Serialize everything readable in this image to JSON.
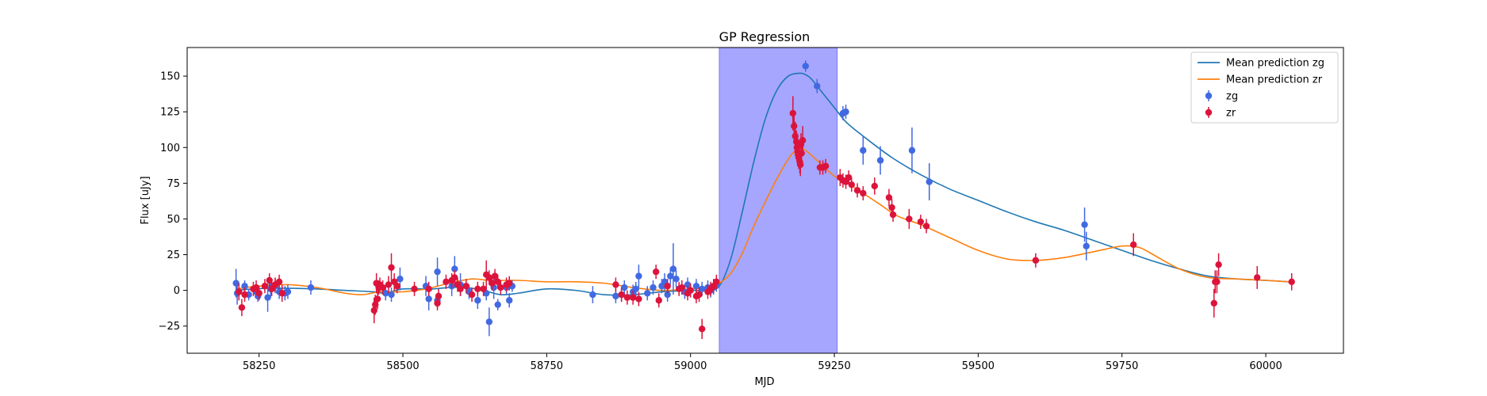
{
  "chart_data": {
    "type": "scatter",
    "title": "GP Regression",
    "xlabel": "MJD",
    "ylabel": "Flux [uJy]",
    "xlim": [
      58125,
      60135
    ],
    "ylim": [
      -44,
      170
    ],
    "xticks": [
      58250,
      58500,
      58750,
      59000,
      59250,
      59500,
      59750,
      60000
    ],
    "yticks": [
      -25,
      0,
      25,
      50,
      75,
      100,
      125,
      150
    ],
    "grid": false,
    "legend_position": "top-right",
    "highlight_region": {
      "x0": 59050,
      "x1": 59255,
      "color": "#a6a6ff"
    },
    "lines": [
      {
        "name": "Mean prediction zg",
        "color": "#1f77b4",
        "x": [
          58210,
          58240,
          58270,
          58300,
          58350,
          58400,
          58450,
          58470,
          58500,
          58550,
          58580,
          58610,
          58640,
          58670,
          58700,
          58750,
          58800,
          58850,
          58900,
          58950,
          59000,
          59030,
          59050,
          59070,
          59090,
          59110,
          59130,
          59150,
          59170,
          59190,
          59200,
          59210,
          59230,
          59250,
          59270,
          59300,
          59350,
          59400,
          59450,
          59500,
          59550,
          59600,
          59650,
          59700,
          59750,
          59800,
          59850,
          59900,
          59950,
          60000,
          60040
        ],
        "y": [
          0,
          1,
          1.5,
          1.5,
          1,
          0,
          -1,
          -2,
          1,
          1,
          2,
          2,
          0,
          -3,
          -2,
          1,
          0,
          -3,
          -3,
          -1,
          0,
          0,
          3,
          22,
          55,
          90,
          120,
          140,
          150,
          152,
          151,
          148,
          138,
          128,
          118,
          108,
          93,
          81,
          71,
          63,
          55,
          48,
          42,
          35,
          28,
          21,
          15,
          10,
          8,
          7,
          6
        ]
      },
      {
        "name": "Mean prediction zr",
        "color": "#ff7f0e",
        "x": [
          58210,
          58250,
          58300,
          58350,
          58400,
          58430,
          58460,
          58500,
          58540,
          58580,
          58620,
          58650,
          58700,
          58750,
          58800,
          58850,
          58900,
          58950,
          59000,
          59030,
          59050,
          59070,
          59090,
          59110,
          59130,
          59150,
          59170,
          59180,
          59190,
          59200,
          59220,
          59250,
          59270,
          59300,
          59330,
          59360,
          59400,
          59450,
          59500,
          59550,
          59600,
          59650,
          59700,
          59750,
          59780,
          59800,
          59850,
          59900,
          59950,
          60000,
          60040
        ],
        "y": [
          1,
          3,
          4,
          2,
          -2,
          -3,
          -1,
          -1,
          1,
          5,
          8,
          7,
          7,
          6,
          6,
          5,
          2,
          0,
          1,
          2,
          5,
          12,
          26,
          45,
          62,
          78,
          92,
          97,
          99,
          98,
          91,
          80,
          76,
          68,
          60,
          52,
          46,
          37,
          28,
          22,
          21,
          23,
          27,
          31,
          30,
          26,
          15,
          9,
          8,
          7,
          6
        ]
      }
    ],
    "series": [
      {
        "name": "zg",
        "color": "#4169e1",
        "points": [
          [
            58210,
            5,
            10
          ],
          [
            58212,
            -2,
            8
          ],
          [
            58225,
            3,
            4
          ],
          [
            58232,
            -3,
            4
          ],
          [
            58245,
            -1,
            3
          ],
          [
            58248,
            -4,
            4
          ],
          [
            58265,
            -5,
            10
          ],
          [
            58270,
            1,
            6
          ],
          [
            58278,
            3,
            5
          ],
          [
            58285,
            -1,
            5
          ],
          [
            58295,
            -2,
            5
          ],
          [
            58300,
            -1,
            5
          ],
          [
            58340,
            2,
            5
          ],
          [
            58470,
            -2,
            5
          ],
          [
            58480,
            -3,
            5
          ],
          [
            58495,
            8,
            8
          ],
          [
            58540,
            3,
            7
          ],
          [
            58545,
            -6,
            8
          ],
          [
            58560,
            13,
            10
          ],
          [
            58560,
            -7,
            5
          ],
          [
            58585,
            3,
            7
          ],
          [
            58590,
            15,
            9
          ],
          [
            58600,
            4,
            8
          ],
          [
            58615,
            -1,
            5
          ],
          [
            58630,
            -7,
            6
          ],
          [
            58645,
            -2,
            5
          ],
          [
            58650,
            -22,
            10
          ],
          [
            58658,
            2,
            8
          ],
          [
            58665,
            -10,
            4
          ],
          [
            58680,
            2,
            5
          ],
          [
            58685,
            -7,
            5
          ],
          [
            58690,
            3,
            4
          ],
          [
            58830,
            -3,
            6
          ],
          [
            58870,
            -4,
            5
          ],
          [
            58880,
            -3,
            5
          ],
          [
            58885,
            2,
            5
          ],
          [
            58900,
            -1,
            5
          ],
          [
            58905,
            1,
            5
          ],
          [
            58910,
            10,
            8
          ],
          [
            58925,
            -2,
            5
          ],
          [
            58935,
            2,
            5
          ],
          [
            58950,
            3,
            5
          ],
          [
            58955,
            6,
            6
          ],
          [
            58960,
            -3,
            5
          ],
          [
            58965,
            10,
            6
          ],
          [
            58970,
            15,
            18
          ],
          [
            58975,
            8,
            6
          ],
          [
            58990,
            -1,
            5
          ],
          [
            58995,
            4,
            5
          ],
          [
            59010,
            3,
            5
          ],
          [
            59020,
            1,
            5
          ],
          [
            59030,
            2,
            5
          ],
          [
            59035,
            0,
            5
          ],
          [
            59040,
            2,
            5
          ],
          [
            59045,
            4,
            5
          ],
          [
            59200,
            157,
            4
          ],
          [
            59220,
            143,
            5
          ],
          [
            59265,
            124,
            5
          ],
          [
            59270,
            125,
            5
          ],
          [
            59300,
            98,
            10
          ],
          [
            59330,
            91,
            10
          ],
          [
            59385,
            98,
            16
          ],
          [
            59415,
            76,
            13
          ],
          [
            59685,
            46,
            12
          ],
          [
            59688,
            31,
            10
          ]
        ]
      },
      {
        "name": "zr",
        "color": "#dc143c",
        "points": [
          [
            58215,
            -1,
            6
          ],
          [
            58220,
            -12,
            6
          ],
          [
            58225,
            -3,
            5
          ],
          [
            58240,
            1,
            5
          ],
          [
            58245,
            2,
            5
          ],
          [
            58250,
            -2,
            5
          ],
          [
            58260,
            3,
            5
          ],
          [
            58268,
            7,
            5
          ],
          [
            58272,
            1,
            5
          ],
          [
            58278,
            4,
            5
          ],
          [
            58285,
            6,
            5
          ],
          [
            58290,
            -2,
            6
          ],
          [
            58450,
            -14,
            9
          ],
          [
            58452,
            -10,
            7
          ],
          [
            58454,
            5,
            7
          ],
          [
            58456,
            -6,
            7
          ],
          [
            58458,
            2,
            5
          ],
          [
            58460,
            4,
            5
          ],
          [
            58465,
            2,
            5
          ],
          [
            58475,
            4,
            6
          ],
          [
            58480,
            16,
            10
          ],
          [
            58485,
            6,
            6
          ],
          [
            58490,
            3,
            5
          ],
          [
            58520,
            1,
            5
          ],
          [
            58545,
            1,
            5
          ],
          [
            58560,
            -9,
            5
          ],
          [
            58562,
            -4,
            5
          ],
          [
            58575,
            6,
            5
          ],
          [
            58585,
            7,
            5
          ],
          [
            58590,
            9,
            5
          ],
          [
            58595,
            4,
            5
          ],
          [
            58600,
            1,
            5
          ],
          [
            58610,
            3,
            5
          ],
          [
            58620,
            -3,
            5
          ],
          [
            58630,
            1,
            5
          ],
          [
            58640,
            1,
            5
          ],
          [
            58645,
            11,
            10
          ],
          [
            58650,
            9,
            5
          ],
          [
            58655,
            5,
            5
          ],
          [
            58660,
            10,
            5
          ],
          [
            58665,
            6,
            5
          ],
          [
            58670,
            2,
            5
          ],
          [
            58680,
            4,
            5
          ],
          [
            58685,
            5,
            5
          ],
          [
            58870,
            4,
            5
          ],
          [
            58880,
            -3,
            5
          ],
          [
            58890,
            -5,
            5
          ],
          [
            58900,
            -5,
            5
          ],
          [
            58910,
            -6,
            5
          ],
          [
            58940,
            13,
            5
          ],
          [
            58945,
            -7,
            5
          ],
          [
            58960,
            3,
            5
          ],
          [
            58980,
            1,
            5
          ],
          [
            58985,
            2,
            5
          ],
          [
            58995,
            -2,
            5
          ],
          [
            59000,
            0,
            5
          ],
          [
            59010,
            -4,
            5
          ],
          [
            59015,
            -3,
            5
          ],
          [
            59020,
            -27,
            7
          ],
          [
            59030,
            -1,
            5
          ],
          [
            59035,
            1,
            5
          ],
          [
            59040,
            3,
            5
          ],
          [
            59045,
            6,
            5
          ],
          [
            59178,
            124,
            12
          ],
          [
            59180,
            115,
            10
          ],
          [
            59182,
            108,
            10
          ],
          [
            59184,
            104,
            8
          ],
          [
            59185,
            100,
            10
          ],
          [
            59186,
            97,
            10
          ],
          [
            59187,
            95,
            8
          ],
          [
            59188,
            93,
            8
          ],
          [
            59190,
            90,
            8
          ],
          [
            59191,
            88,
            8
          ],
          [
            59192,
            102,
            8
          ],
          [
            59193,
            96,
            8
          ],
          [
            59195,
            105,
            10
          ],
          [
            59225,
            86,
            5
          ],
          [
            59230,
            86,
            5
          ],
          [
            59235,
            87,
            5
          ],
          [
            59260,
            79,
            6
          ],
          [
            59265,
            77,
            5
          ],
          [
            59270,
            76,
            5
          ],
          [
            59275,
            79,
            5
          ],
          [
            59280,
            74,
            5
          ],
          [
            59290,
            70,
            5
          ],
          [
            59300,
            68,
            5
          ],
          [
            59320,
            73,
            6
          ],
          [
            59345,
            65,
            6
          ],
          [
            59350,
            58,
            6
          ],
          [
            59352,
            53,
            5
          ],
          [
            59380,
            50,
            7
          ],
          [
            59400,
            48,
            5
          ],
          [
            59410,
            45,
            5
          ],
          [
            59600,
            21,
            5
          ],
          [
            59770,
            32,
            8
          ],
          [
            59910,
            -9,
            10
          ],
          [
            59912,
            6,
            8
          ],
          [
            59915,
            6,
            8
          ],
          [
            59918,
            18,
            8
          ],
          [
            59985,
            9,
            8
          ],
          [
            60045,
            6,
            6
          ]
        ]
      }
    ]
  }
}
